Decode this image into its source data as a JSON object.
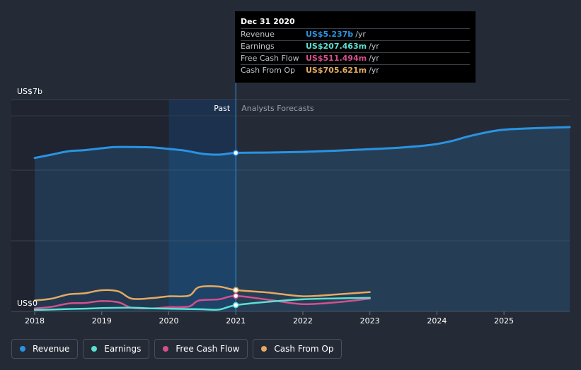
{
  "chart_data": {
    "type": "line",
    "title": "",
    "y_unit_top": "US$7b",
    "y_unit_bottom": "US$0",
    "ylim": [
      0,
      7
    ],
    "xlim": [
      2018,
      2025.98
    ],
    "x_ticks": [
      "2018",
      "2019",
      "2020",
      "2021",
      "2022",
      "2023",
      "2024",
      "2025"
    ],
    "past_label": "Past",
    "forecast_label": "Analysts Forecasts",
    "divider_x": 2021,
    "series": [
      {
        "name": "Revenue",
        "color": "#2a93e2",
        "points": [
          [
            2018,
            5.07
          ],
          [
            2018.25,
            5.18
          ],
          [
            2018.5,
            5.29
          ],
          [
            2018.75,
            5.33
          ],
          [
            2019,
            5.39
          ],
          [
            2019.2,
            5.43
          ],
          [
            2019.5,
            5.43
          ],
          [
            2019.75,
            5.42
          ],
          [
            2020,
            5.37
          ],
          [
            2020.25,
            5.31
          ],
          [
            2020.5,
            5.21
          ],
          [
            2020.75,
            5.18
          ],
          [
            2021,
            5.237
          ],
          [
            2021.5,
            5.25
          ],
          [
            2022,
            5.27
          ],
          [
            2022.5,
            5.31
          ],
          [
            2023,
            5.36
          ],
          [
            2023.5,
            5.42
          ],
          [
            2023.9,
            5.5
          ],
          [
            2024.2,
            5.62
          ],
          [
            2024.5,
            5.8
          ],
          [
            2024.9,
            5.98
          ],
          [
            2025.3,
            6.04
          ],
          [
            2025.98,
            6.09
          ]
        ]
      },
      {
        "name": "Earnings",
        "color": "#5ce0d2",
        "points": [
          [
            2018,
            0.05
          ],
          [
            2018.25,
            0.06
          ],
          [
            2018.5,
            0.08
          ],
          [
            2018.75,
            0.09
          ],
          [
            2019,
            0.11
          ],
          [
            2019.25,
            0.12
          ],
          [
            2019.5,
            0.12
          ],
          [
            2019.75,
            0.1
          ],
          [
            2020,
            0.09
          ],
          [
            2020.25,
            0.08
          ],
          [
            2020.5,
            0.07
          ],
          [
            2020.75,
            0.06
          ],
          [
            2021,
            0.207
          ],
          [
            2021.5,
            0.32
          ],
          [
            2022,
            0.4
          ],
          [
            2022.5,
            0.43
          ],
          [
            2023,
            0.45
          ]
        ]
      },
      {
        "name": "Free Cash Flow",
        "color": "#d4508c",
        "points": [
          [
            2018,
            0.1
          ],
          [
            2018.25,
            0.15
          ],
          [
            2018.5,
            0.26
          ],
          [
            2018.75,
            0.28
          ],
          [
            2019,
            0.34
          ],
          [
            2019.25,
            0.3
          ],
          [
            2019.45,
            0.12
          ],
          [
            2019.75,
            0.1
          ],
          [
            2020,
            0.14
          ],
          [
            2020.3,
            0.16
          ],
          [
            2020.45,
            0.36
          ],
          [
            2020.75,
            0.4
          ],
          [
            2021,
            0.511
          ],
          [
            2021.5,
            0.38
          ],
          [
            2022,
            0.24
          ],
          [
            2022.5,
            0.3
          ],
          [
            2023,
            0.42
          ]
        ]
      },
      {
        "name": "Cash From Op",
        "color": "#e4aa62",
        "points": [
          [
            2018,
            0.36
          ],
          [
            2018.25,
            0.42
          ],
          [
            2018.5,
            0.56
          ],
          [
            2018.75,
            0.6
          ],
          [
            2019,
            0.7
          ],
          [
            2019.25,
            0.66
          ],
          [
            2019.45,
            0.42
          ],
          [
            2019.75,
            0.44
          ],
          [
            2020,
            0.5
          ],
          [
            2020.3,
            0.52
          ],
          [
            2020.45,
            0.8
          ],
          [
            2020.75,
            0.82
          ],
          [
            2021,
            0.705
          ],
          [
            2021.5,
            0.62
          ],
          [
            2022,
            0.5
          ],
          [
            2022.5,
            0.56
          ],
          [
            2023,
            0.64
          ]
        ]
      }
    ],
    "marker_x": 2021,
    "tooltip": {
      "date": "Dec 31 2020",
      "rows": [
        {
          "label": "Revenue",
          "value": "US$5.237b",
          "unit": "/yr",
          "color": "#2a93e2"
        },
        {
          "label": "Earnings",
          "value": "US$207.463m",
          "unit": "/yr",
          "color": "#5ce0d2"
        },
        {
          "label": "Free Cash Flow",
          "value": "US$511.494m",
          "unit": "/yr",
          "color": "#d4508c"
        },
        {
          "label": "Cash From Op",
          "value": "US$705.621m",
          "unit": "/yr",
          "color": "#e4aa62"
        }
      ]
    }
  },
  "legend": [
    {
      "label": "Revenue",
      "color": "#2a93e2"
    },
    {
      "label": "Earnings",
      "color": "#5ce0d2"
    },
    {
      "label": "Free Cash Flow",
      "color": "#d4508c"
    },
    {
      "label": "Cash From Op",
      "color": "#e4aa62"
    }
  ]
}
